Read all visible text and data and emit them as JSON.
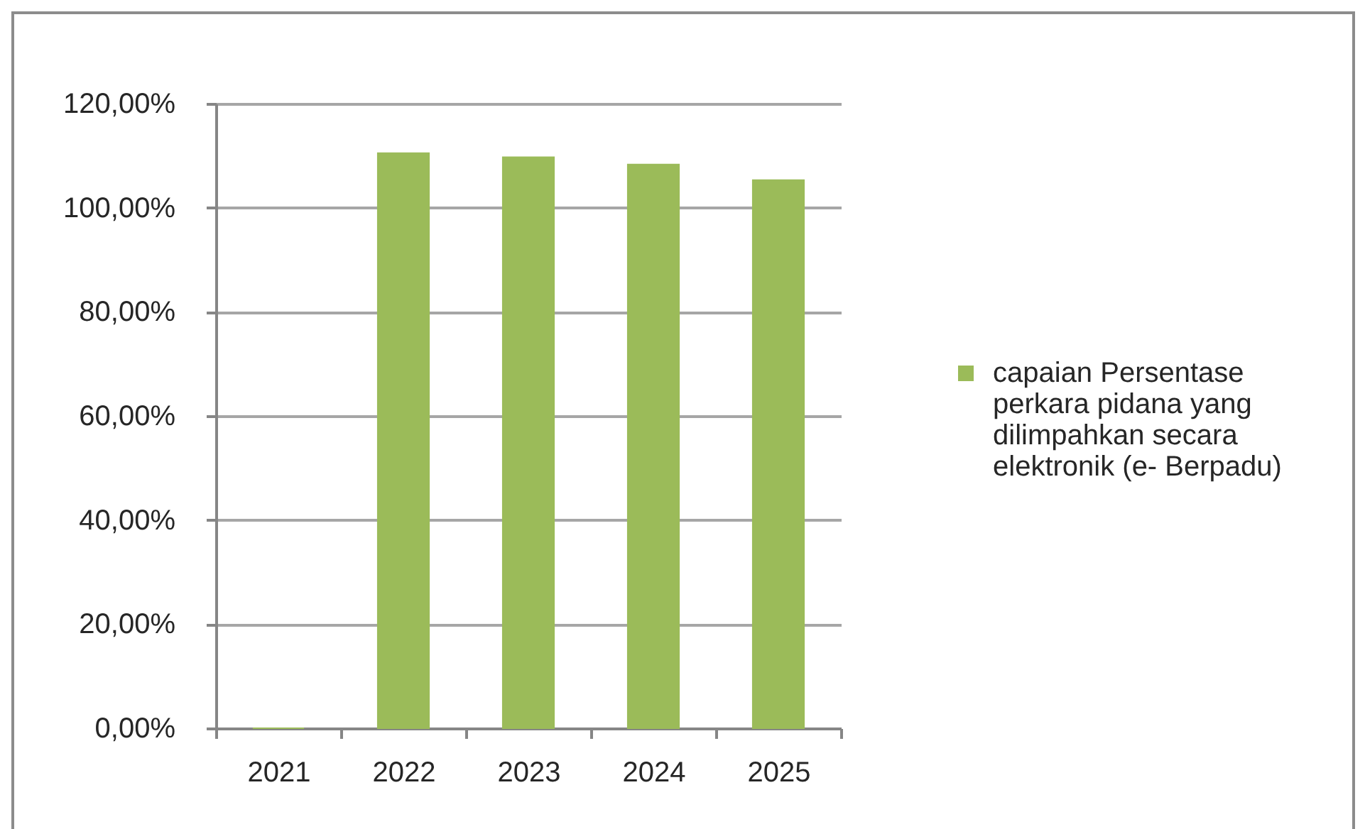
{
  "chart_data": {
    "type": "bar",
    "categories": [
      "2021",
      "2022",
      "2023",
      "2024",
      "2025"
    ],
    "series": [
      {
        "name": "capaian Persentase perkara pidana yang dilimpahkan secara elektronik (e- Berpadu)",
        "color": "#9bbb59",
        "values": [
          0,
          110.5,
          109.7,
          108.3,
          105.3
        ]
      }
    ],
    "ylim": [
      0,
      120
    ],
    "yticks": [
      {
        "value": 0,
        "label": "0,00%"
      },
      {
        "value": 20,
        "label": "20,00%"
      },
      {
        "value": 40,
        "label": "40,00%"
      },
      {
        "value": 60,
        "label": "60,00%"
      },
      {
        "value": 80,
        "label": "80,00%"
      },
      {
        "value": 100,
        "label": "100,00%"
      },
      {
        "value": 120,
        "label": "120,00%"
      }
    ],
    "grid": "y",
    "legend": "right"
  }
}
